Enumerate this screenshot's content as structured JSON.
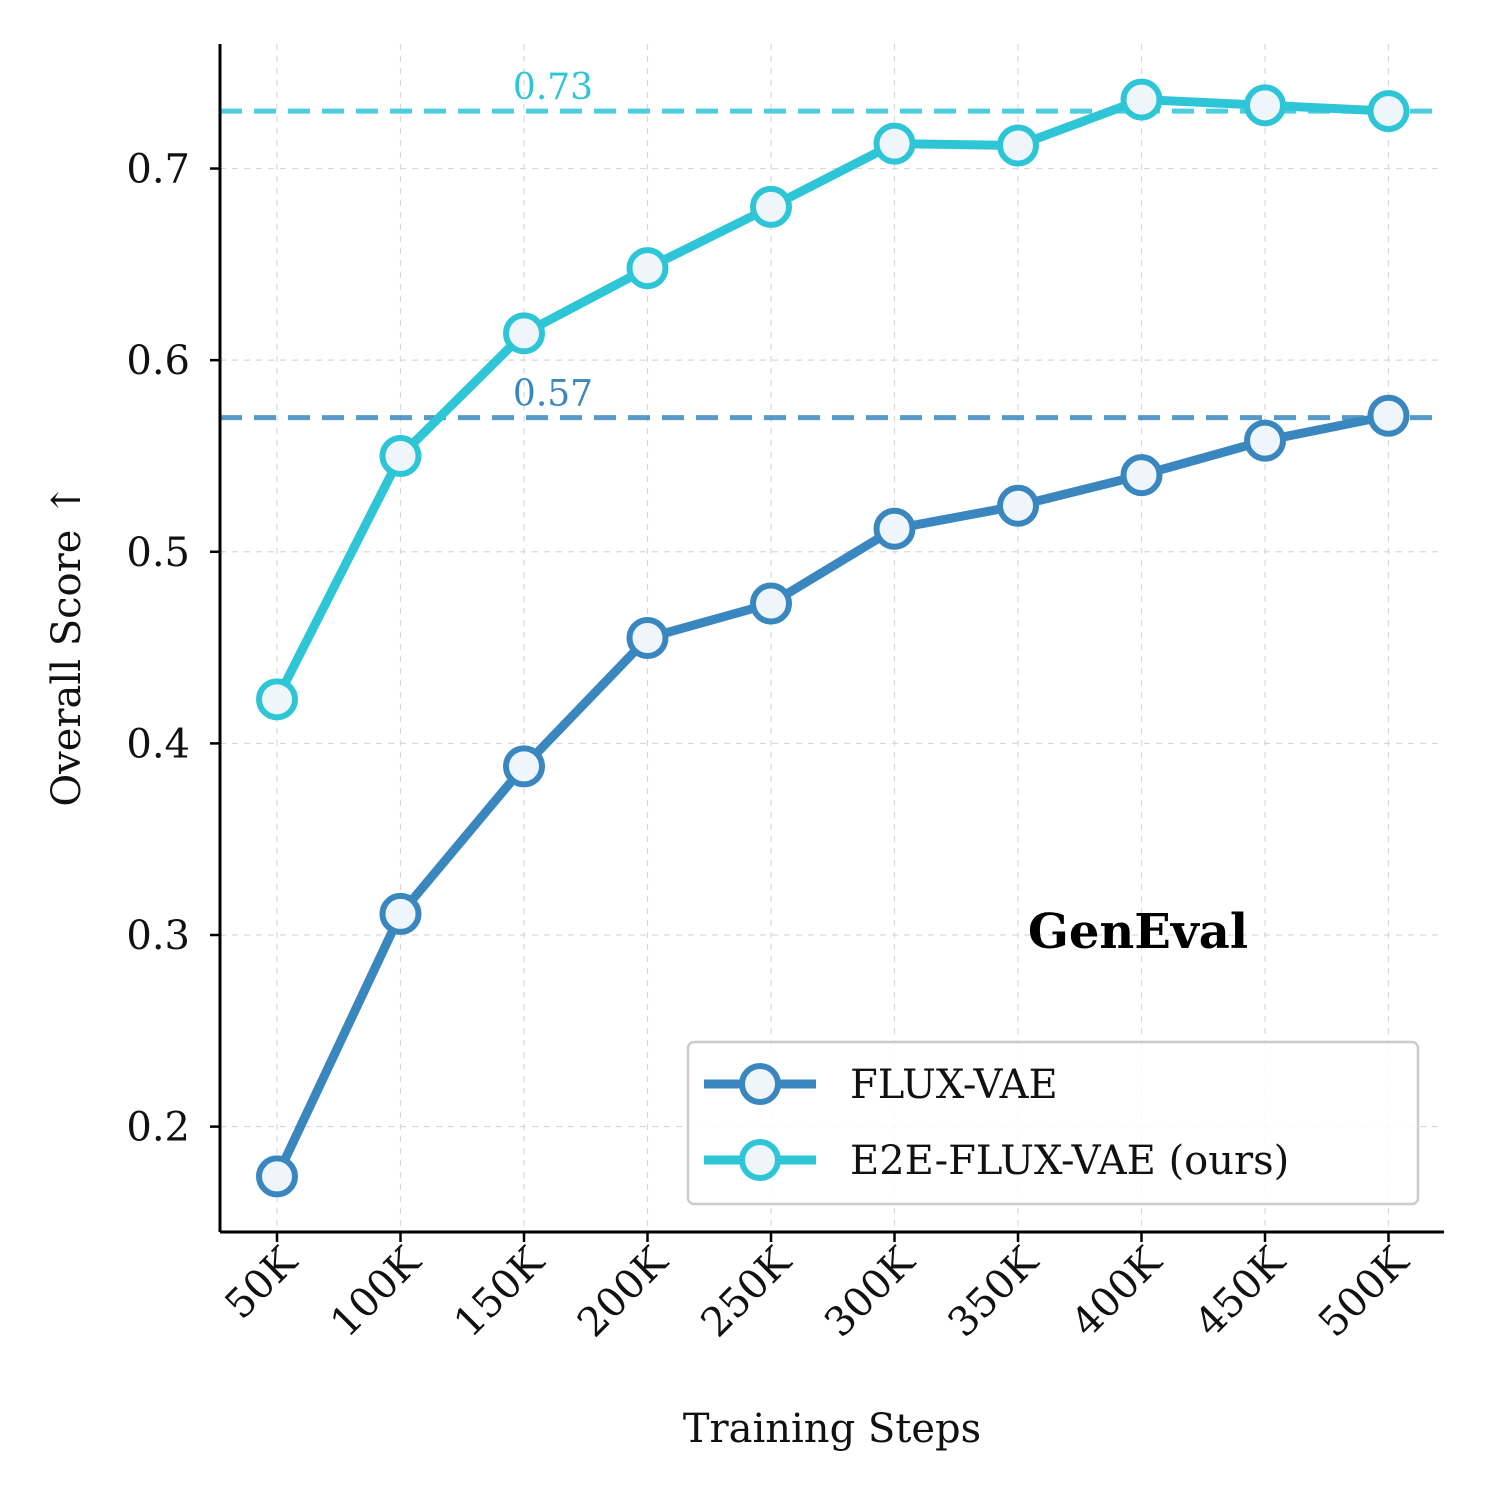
{
  "chart_data": {
    "type": "line",
    "panel_title": "GenEval",
    "xlabel": "Training Steps",
    "ylabel": "Overall Score ↑",
    "categories": [
      "50K",
      "100K",
      "150K",
      "200K",
      "250K",
      "300K",
      "350K",
      "400K",
      "450K",
      "500K"
    ],
    "ylim": [
      0.145,
      0.765
    ],
    "yticks": [
      0.2,
      0.3,
      0.4,
      0.5,
      0.6,
      0.7
    ],
    "ytick_labels": [
      "0.2",
      "0.3",
      "0.4",
      "0.5",
      "0.6",
      "0.7"
    ],
    "grid": true,
    "legend_position": "lower right",
    "series": [
      {
        "name": "FLUX-VAE",
        "color": "#3a87c0",
        "values": [
          0.174,
          0.311,
          0.388,
          0.455,
          0.473,
          0.512,
          0.524,
          0.54,
          0.558,
          0.571
        ]
      },
      {
        "name": "E2E-FLUX-VAE (ours)",
        "color": "#2ec5d6",
        "values": [
          0.423,
          0.55,
          0.614,
          0.648,
          0.68,
          0.713,
          0.712,
          0.736,
          0.733,
          0.73
        ]
      }
    ],
    "reference_lines": [
      {
        "value": 0.73,
        "label": "0.73",
        "color": "#2ec5d6"
      },
      {
        "value": 0.57,
        "label": "0.57",
        "color": "#3a87c0"
      }
    ]
  }
}
